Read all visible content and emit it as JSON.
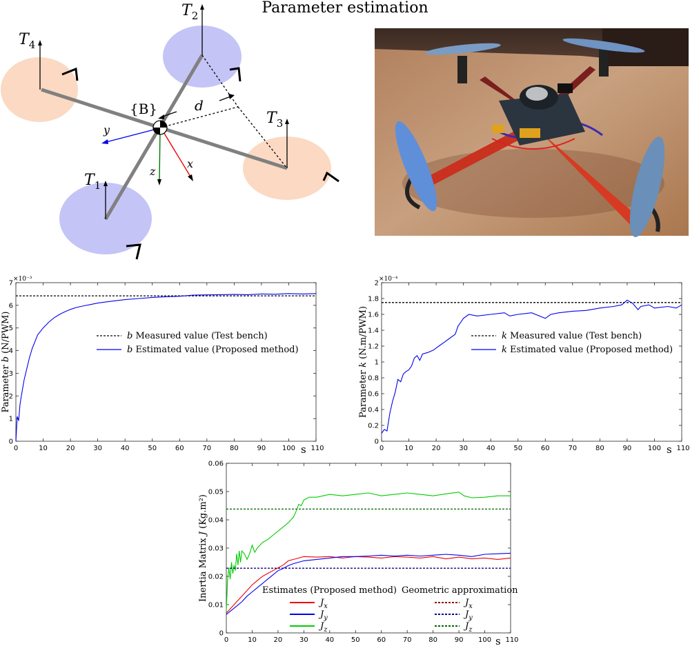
{
  "title": "Parameter estimation",
  "diagram": {
    "rotor_labels": [
      "T",
      "1",
      "T",
      "2",
      "T",
      "3",
      "T",
      "4"
    ],
    "body_frame": "{B}",
    "distance": "d",
    "axes": [
      "x",
      "y",
      "z"
    ]
  },
  "photo": {
    "subject": "quadcopter"
  },
  "colors": {
    "blue": "#0000ee",
    "red": "#ee0000",
    "green": "#00cc00",
    "black": "#000000",
    "rotor_blue": "#c4c4f6",
    "rotor_orange": "#fbd9c3"
  },
  "chart_data": [
    {
      "type": "line",
      "ylabel": "Parameter b (N/PWM)",
      "xunit": "s",
      "yexp": "×10⁻³",
      "xlim": [
        0,
        110
      ],
      "ylim": [
        0,
        7
      ],
      "xticks": [
        0,
        10,
        20,
        30,
        40,
        50,
        60,
        70,
        80,
        90,
        100,
        110
      ],
      "yticks": [
        0,
        1,
        2,
        3,
        4,
        5,
        6,
        7
      ],
      "ytick_labels": [
        "0",
        "1",
        "2",
        "3",
        "4",
        "5",
        "6",
        "7"
      ],
      "legend": [
        "b Measured value (Test bench)",
        "b Estimated value (Proposed method)"
      ],
      "series": [
        {
          "name": "b Measured value (Test bench)",
          "style": "dashed",
          "color": "#000000",
          "x": [
            0,
            110
          ],
          "y": [
            6.42,
            6.42
          ]
        },
        {
          "name": "b Estimated value (Proposed method)",
          "style": "solid",
          "color": "#0000ee",
          "x": [
            0,
            0.5,
            1,
            1.5,
            2,
            3,
            4,
            5,
            6,
            7,
            8,
            10,
            12,
            14,
            16,
            18,
            20,
            22,
            25,
            28,
            30,
            35,
            40,
            45,
            50,
            55,
            60,
            65,
            70,
            75,
            80,
            85,
            90,
            95,
            100,
            105,
            110
          ],
          "y": [
            0,
            1.1,
            0.9,
            1.6,
            2.0,
            2.7,
            3.2,
            3.7,
            4.1,
            4.4,
            4.7,
            5.0,
            5.25,
            5.45,
            5.6,
            5.72,
            5.82,
            5.9,
            5.98,
            6.05,
            6.1,
            6.18,
            6.25,
            6.3,
            6.35,
            6.38,
            6.4,
            6.45,
            6.46,
            6.47,
            6.48,
            6.47,
            6.5,
            6.49,
            6.52,
            6.5,
            6.52
          ]
        }
      ]
    },
    {
      "type": "line",
      "ylabel": "Parameter k (N.m/PWM)",
      "xunit": "s",
      "yexp": "×10⁻⁴",
      "xlim": [
        0,
        110
      ],
      "ylim": [
        0,
        2
      ],
      "xticks": [
        0,
        10,
        20,
        30,
        40,
        50,
        60,
        70,
        80,
        90,
        100,
        110
      ],
      "yticks": [
        0,
        0.2,
        0.4,
        0.6,
        0.8,
        1,
        1.2,
        1.4,
        1.6,
        1.8,
        2
      ],
      "ytick_labels": [
        "0",
        "0.2",
        "0.4",
        "0.6",
        "0.8",
        "1",
        "1.2",
        "1.4",
        "1.6",
        "1.8",
        "2"
      ],
      "legend": [
        "k Measured value (Test bench)",
        "k Estimated value (Proposed method)"
      ],
      "series": [
        {
          "name": "k Measured value (Test bench)",
          "style": "dashed",
          "color": "#000000",
          "x": [
            0,
            110
          ],
          "y": [
            1.75,
            1.75
          ]
        },
        {
          "name": "k Estimated value (Proposed method)",
          "style": "solid",
          "color": "#0000ee",
          "x": [
            0,
            1,
            2,
            3,
            4,
            5,
            6,
            7,
            8,
            9,
            10,
            11,
            12,
            13,
            14,
            15,
            17,
            19,
            21,
            23,
            25,
            27,
            28,
            29,
            30,
            32,
            35,
            40,
            45,
            47,
            50,
            55,
            60,
            62,
            65,
            70,
            75,
            80,
            85,
            88,
            90,
            92,
            94,
            95,
            98,
            100,
            105,
            108,
            110
          ],
          "y": [
            0.1,
            0.15,
            0.13,
            0.35,
            0.5,
            0.62,
            0.78,
            0.75,
            0.85,
            0.88,
            0.9,
            0.95,
            1.05,
            1.08,
            1.02,
            1.1,
            1.12,
            1.15,
            1.2,
            1.25,
            1.3,
            1.35,
            1.45,
            1.5,
            1.55,
            1.6,
            1.58,
            1.6,
            1.62,
            1.58,
            1.6,
            1.62,
            1.55,
            1.6,
            1.62,
            1.64,
            1.65,
            1.68,
            1.7,
            1.72,
            1.78,
            1.74,
            1.66,
            1.7,
            1.72,
            1.68,
            1.7,
            1.68,
            1.72
          ]
        }
      ]
    },
    {
      "type": "line",
      "ylabel": "Inertia Matrix J (Kg.m²)",
      "xunit": "s",
      "xlim": [
        0,
        110
      ],
      "ylim": [
        0,
        0.06
      ],
      "xticks": [
        0,
        10,
        20,
        30,
        40,
        50,
        60,
        70,
        80,
        90,
        100,
        110
      ],
      "yticks": [
        0,
        0.01,
        0.02,
        0.03,
        0.04,
        0.05,
        0.06
      ],
      "ytick_labels": [
        "0",
        "0.01",
        "0.02",
        "0.03",
        "0.04",
        "0.05",
        "0.06"
      ],
      "legend_titles": [
        "Estimates (Proposed method)",
        "Geometric approximation"
      ],
      "legend": [
        "Jx",
        "Jy",
        "Jz"
      ],
      "series": [
        {
          "name": "Jx",
          "group": "Estimates",
          "style": "solid",
          "color": "#ee0000",
          "x": [
            0,
            2,
            4,
            6,
            8,
            10,
            12,
            14,
            16,
            18,
            20,
            22,
            24,
            26,
            28,
            30,
            35,
            40,
            45,
            50,
            55,
            60,
            65,
            70,
            75,
            80,
            85,
            90,
            95,
            100,
            105,
            110
          ],
          "y": [
            0.007,
            0.009,
            0.011,
            0.013,
            0.015,
            0.017,
            0.0185,
            0.02,
            0.021,
            0.022,
            0.023,
            0.024,
            0.0255,
            0.026,
            0.0265,
            0.027,
            0.0268,
            0.027,
            0.0265,
            0.027,
            0.0268,
            0.0265,
            0.027,
            0.0268,
            0.0265,
            0.027,
            0.0262,
            0.0268,
            0.0262,
            0.0265,
            0.026,
            0.0265
          ]
        },
        {
          "name": "Jy",
          "group": "Estimates",
          "style": "solid",
          "color": "#0000ee",
          "x": [
            0,
            2,
            4,
            6,
            8,
            10,
            12,
            14,
            16,
            18,
            20,
            22,
            24,
            26,
            28,
            30,
            35,
            40,
            45,
            50,
            55,
            60,
            65,
            70,
            75,
            80,
            85,
            90,
            95,
            100,
            105,
            110
          ],
          "y": [
            0.0065,
            0.008,
            0.0095,
            0.011,
            0.013,
            0.0145,
            0.016,
            0.0175,
            0.019,
            0.0205,
            0.022,
            0.0228,
            0.0238,
            0.0245,
            0.025,
            0.0255,
            0.026,
            0.0265,
            0.027,
            0.027,
            0.0272,
            0.0275,
            0.0272,
            0.0275,
            0.0272,
            0.0275,
            0.0278,
            0.0275,
            0.027,
            0.0278,
            0.028,
            0.0282
          ]
        },
        {
          "name": "Jz",
          "group": "Estimates",
          "style": "solid",
          "color": "#00cc00",
          "x": [
            0,
            0.5,
            1,
            1.5,
            2,
            2.5,
            3,
            3.5,
            4,
            4.5,
            5,
            5.5,
            6,
            7,
            8,
            9,
            10,
            11,
            12,
            13,
            14,
            16,
            18,
            20,
            22,
            24,
            26,
            27,
            28,
            29,
            30,
            32,
            35,
            40,
            45,
            50,
            55,
            60,
            65,
            70,
            75,
            80,
            85,
            90,
            92,
            95,
            100,
            105,
            110
          ],
          "y": [
            0.008,
            0.019,
            0.023,
            0.019,
            0.025,
            0.021,
            0.024,
            0.022,
            0.028,
            0.024,
            0.029,
            0.025,
            0.029,
            0.028,
            0.026,
            0.028,
            0.031,
            0.0285,
            0.03,
            0.031,
            0.032,
            0.033,
            0.0345,
            0.036,
            0.0375,
            0.039,
            0.041,
            0.043,
            0.0455,
            0.045,
            0.047,
            0.048,
            0.048,
            0.049,
            0.0485,
            0.049,
            0.0495,
            0.0485,
            0.049,
            0.0495,
            0.049,
            0.0485,
            0.0492,
            0.0498,
            0.0485,
            0.0478,
            0.048,
            0.0485,
            0.0485
          ]
        },
        {
          "name": "Jx",
          "group": "Geometric",
          "style": "dashed",
          "color": "#8b0000",
          "x": [
            0,
            110
          ],
          "y": [
            0.0229,
            0.0229
          ]
        },
        {
          "name": "Jy",
          "group": "Geometric",
          "style": "dashed",
          "color": "#00008b",
          "x": [
            0,
            110
          ],
          "y": [
            0.0229,
            0.0229
          ]
        },
        {
          "name": "Jz",
          "group": "Geometric",
          "style": "dashed",
          "color": "#006400",
          "x": [
            0,
            110
          ],
          "y": [
            0.0438,
            0.0438
          ]
        }
      ]
    }
  ]
}
